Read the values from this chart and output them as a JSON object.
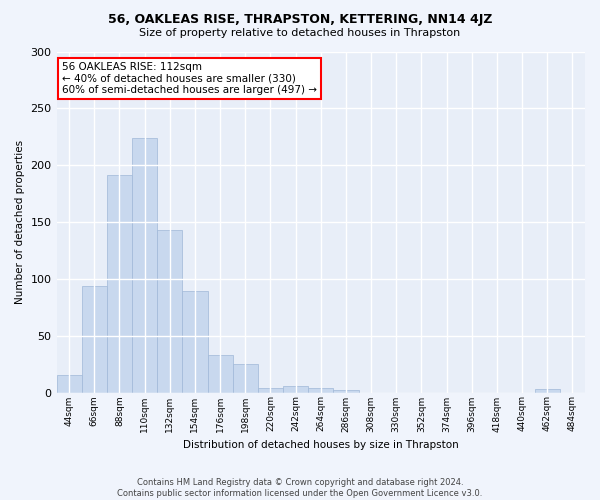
{
  "title": "56, OAKLEAS RISE, THRAPSTON, KETTERING, NN14 4JZ",
  "subtitle": "Size of property relative to detached houses in Thrapston",
  "xlabel": "Distribution of detached houses by size in Thrapston",
  "ylabel": "Number of detached properties",
  "bar_color": "#c8d8ee",
  "bar_edge_color": "#a0b8d8",
  "background_color": "#e8eef8",
  "fig_background": "#f0f4fc",
  "categories": [
    "44sqm",
    "66sqm",
    "88sqm",
    "110sqm",
    "132sqm",
    "154sqm",
    "176sqm",
    "198sqm",
    "220sqm",
    "242sqm",
    "264sqm",
    "286sqm",
    "308sqm",
    "330sqm",
    "352sqm",
    "374sqm",
    "396sqm",
    "418sqm",
    "440sqm",
    "462sqm",
    "484sqm"
  ],
  "values": [
    15,
    94,
    191,
    224,
    143,
    89,
    33,
    25,
    4,
    6,
    4,
    2,
    0,
    0,
    0,
    0,
    0,
    0,
    0,
    3,
    0
  ],
  "ylim": [
    0,
    300
  ],
  "yticks": [
    0,
    50,
    100,
    150,
    200,
    250,
    300
  ],
  "annotation_text": "56 OAKLEAS RISE: 112sqm\n← 40% of detached houses are smaller (330)\n60% of semi-detached houses are larger (497) →",
  "property_bar_index": 3,
  "footer_line1": "Contains HM Land Registry data © Crown copyright and database right 2024.",
  "footer_line2": "Contains public sector information licensed under the Open Government Licence v3.0."
}
